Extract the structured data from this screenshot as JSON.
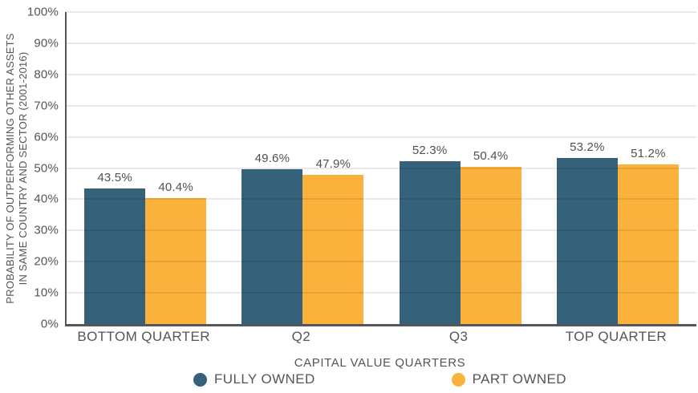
{
  "chart_data": {
    "type": "bar",
    "title": "",
    "categories": [
      "BOTTOM QUARTER",
      "Q2",
      "Q3",
      "TOP QUARTER"
    ],
    "series": [
      {
        "name": "FULLY OWNED",
        "color": "#35617B",
        "values": [
          43.5,
          49.6,
          52.3,
          53.2
        ],
        "labels": [
          "43.5%",
          "49.6%",
          "52.3%",
          "53.2%"
        ]
      },
      {
        "name": "PART OWNED",
        "color": "#FBB23C",
        "values": [
          40.4,
          47.9,
          50.4,
          51.2
        ],
        "labels": [
          "40.4%",
          "47.9%",
          "50.4%",
          "51.2%"
        ]
      }
    ],
    "ylabel_lines": [
      "PROBABILITY OF OUTPERFORMING OTHER ASSETS",
      "IN SAME COUNTRY AND SECTOR (2001-2016)"
    ],
    "xlabel": "CAPITAL VALUE QUARTERS",
    "ylim": [
      0,
      100
    ],
    "ytick_step": 10,
    "ytick_labels": [
      "0%",
      "10%",
      "20%",
      "30%",
      "40%",
      "50%",
      "60%",
      "70%",
      "80%",
      "90%",
      "100%"
    ],
    "grid": true,
    "legend_position": "bottom",
    "legend_marker": "circle",
    "colors": {
      "axis": "#55565B",
      "grid": "#E8E8E8",
      "text": "#53555A",
      "background": "#FFFFFF"
    }
  }
}
